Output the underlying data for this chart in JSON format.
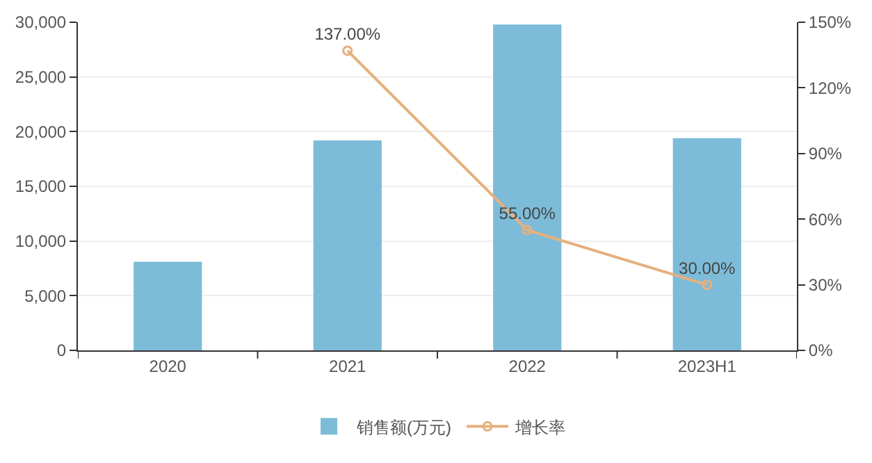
{
  "chart_data": {
    "type": "bar",
    "categories": [
      "2020",
      "2021",
      "2022",
      "2023H1"
    ],
    "series": [
      {
        "name": "销售额(万元)",
        "color": "#7dbcd8",
        "values": [
          8100,
          19200,
          29800,
          19400
        ]
      },
      {
        "name": "增长率",
        "type": "line",
        "axis": "y2",
        "color": "#e5b07e",
        "marker": "circle",
        "values": [
          null,
          137,
          55,
          30
        ],
        "value_labels": [
          null,
          "137.00%",
          "55.00%",
          "30.00%"
        ]
      }
    ],
    "ylim": [
      0,
      30000
    ],
    "yticks": [
      0,
      {
        "value": 5000,
        "label": "5,000"
      },
      {
        "value": 10000,
        "label": "10,000"
      },
      {
        "value": 15000,
        "label": "15,000"
      },
      {
        "value": 20000,
        "label": "20,000"
      },
      {
        "value": 25000,
        "label": "25,000"
      },
      {
        "value": 30000,
        "label": "30,000"
      }
    ],
    "y2lim": [
      0,
      150
    ],
    "y2ticks": [
      {
        "value": 0,
        "label": "0%"
      },
      {
        "value": 30,
        "label": "30%"
      },
      {
        "value": 60,
        "label": "60%"
      },
      {
        "value": 90,
        "label": "90%"
      },
      {
        "value": 120,
        "label": "120%"
      },
      {
        "value": 150,
        "label": "150%"
      }
    ],
    "grid": "y",
    "legend": "bottom"
  }
}
